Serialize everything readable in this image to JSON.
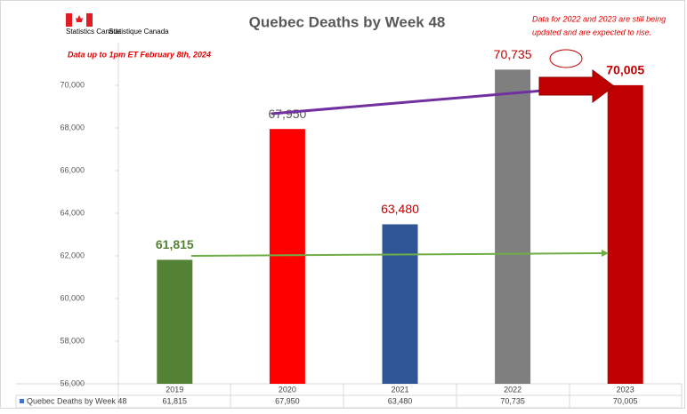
{
  "chart_data": {
    "type": "bar",
    "title": "Quebec Deaths by Week 48",
    "logo_text": [
      "Statistics Canada",
      "Statistique Canada"
    ],
    "note": "Data up to 1pm ET February 8th, 2024",
    "annotation": [
      "Data for 2022 and 2023 are still being",
      "updated and are expected to rise."
    ],
    "categories": [
      "2019",
      "2020",
      "2021",
      "2022",
      "2023"
    ],
    "series": [
      {
        "name": "Quebec Deaths by Week 48",
        "color": "#4472c4",
        "colors": [
          "#548235",
          "#ff0000",
          "#2f5597",
          "#7f7f7f",
          "#c00000"
        ],
        "values": [
          61815,
          67950,
          63480,
          70735,
          70005
        ],
        "value_labels": [
          "61,815",
          "67,950",
          "63,480",
          "70,735",
          "70,005"
        ]
      }
    ],
    "ylim": [
      56000,
      72000
    ],
    "yticks": [
      {
        "value": 56000,
        "label": "56,000"
      },
      {
        "value": 58000,
        "label": "58,000"
      },
      {
        "value": 60000,
        "label": "60,000"
      },
      {
        "value": 62000,
        "label": "62,000"
      },
      {
        "value": 64000,
        "label": "64,000"
      },
      {
        "value": 66000,
        "label": "66,000"
      },
      {
        "value": 68000,
        "label": "68,000"
      },
      {
        "value": 70000,
        "label": "70,000"
      }
    ],
    "grid": false
  }
}
